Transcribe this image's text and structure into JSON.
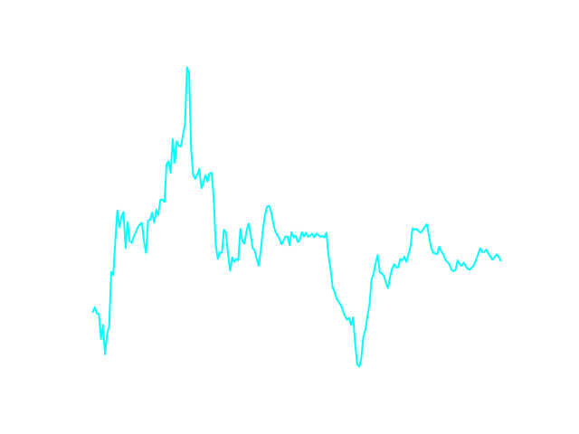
{
  "chart_data": {
    "type": "line",
    "grid": false,
    "axes_visible": false,
    "legend": "none",
    "series": [
      {
        "color": "#00ffff",
        "x": [
          0,
          1,
          2,
          3,
          4,
          5,
          6,
          7,
          8,
          9,
          10,
          11,
          12,
          13,
          14,
          15,
          16,
          17,
          18,
          19,
          20,
          21,
          22,
          23,
          24,
          25,
          26,
          27,
          28,
          29,
          30,
          31,
          32,
          33,
          34,
          35,
          36,
          37,
          38,
          39,
          40,
          41,
          42,
          43,
          44,
          45,
          46,
          47,
          48,
          49,
          50,
          51,
          52,
          53,
          54,
          55,
          56,
          57,
          58,
          59,
          60,
          61,
          62,
          63,
          64,
          65,
          66,
          67,
          68,
          69,
          70,
          71,
          72,
          73,
          74,
          75,
          76,
          77,
          78,
          79,
          80,
          81,
          82,
          83,
          84,
          85,
          86,
          87,
          88,
          89,
          90,
          91,
          92,
          93,
          94,
          95,
          96,
          97,
          98,
          99,
          100,
          101,
          102,
          103,
          104,
          105,
          106,
          107,
          108,
          109,
          110,
          111,
          112,
          113,
          114,
          115,
          116,
          117,
          118,
          119,
          120,
          121,
          122,
          123,
          124,
          125,
          126,
          127,
          128,
          129,
          130,
          131,
          132,
          133,
          134,
          135,
          136,
          137,
          138,
          139,
          140,
          141,
          142,
          143,
          144,
          145,
          146,
          147,
          148,
          149,
          150,
          151,
          152,
          153,
          154,
          155,
          156,
          157,
          158,
          159,
          160,
          161,
          162,
          163,
          164,
          165,
          166,
          167,
          168,
          169,
          170,
          171,
          172,
          173,
          174,
          175,
          176,
          177,
          178,
          179,
          180,
          181,
          182,
          183,
          184,
          185,
          186,
          187,
          188,
          189,
          190,
          191,
          192,
          193,
          194,
          195,
          196,
          197,
          198,
          199
        ],
        "y": [
          -0.35,
          -0.29,
          -0.37,
          -0.37,
          -0.7,
          -0.52,
          -0.9,
          -0.63,
          -0.54,
          0.17,
          0.13,
          0.58,
          0.97,
          0.75,
          0.89,
          0.95,
          0.48,
          0.82,
          0.57,
          0.55,
          0.63,
          0.69,
          0.75,
          0.79,
          0.81,
          0.56,
          0.42,
          0.84,
          0.85,
          0.94,
          0.81,
          0.98,
          0.91,
          1.11,
          1.11,
          1.08,
          1.57,
          1.61,
          1.46,
          1.9,
          1.59,
          1.87,
          1.81,
          1.8,
          1.95,
          2.1,
          2.83,
          2.76,
          1.75,
          1.43,
          1.38,
          1.44,
          1.51,
          1.26,
          1.33,
          1.43,
          1.35,
          1.45,
          1.46,
          1.13,
          0.52,
          0.34,
          0.42,
          0.42,
          0.72,
          0.68,
          0.4,
          0.19,
          0.36,
          0.3,
          0.34,
          0.32,
          0.73,
          0.57,
          0.54,
          0.7,
          0.8,
          0.66,
          0.48,
          0.45,
          0.34,
          0.25,
          0.46,
          0.72,
          0.91,
          1.02,
          1.03,
          0.96,
          0.81,
          0.7,
          0.65,
          0.61,
          0.53,
          0.57,
          0.63,
          0.63,
          0.52,
          0.69,
          0.62,
          0.64,
          0.56,
          0.59,
          0.69,
          0.63,
          0.68,
          0.63,
          0.64,
          0.67,
          0.62,
          0.67,
          0.65,
          0.63,
          0.64,
          0.62,
          0.68,
          0.38,
          0.21,
          -0.03,
          -0.09,
          -0.18,
          -0.22,
          -0.26,
          -0.33,
          -0.4,
          -0.45,
          -0.43,
          -0.52,
          -0.42,
          -0.76,
          -1.03,
          -1.06,
          -0.95,
          -0.67,
          -0.58,
          -0.4,
          -0.25,
          0.07,
          0.15,
          0.29,
          0.39,
          0.17,
          0.15,
          0.12,
          0.03,
          -0.04,
          0.1,
          0.21,
          0.27,
          0.23,
          0.23,
          0.34,
          0.32,
          0.37,
          0.3,
          0.4,
          0.5,
          0.74,
          0.72,
          0.73,
          0.7,
          0.68,
          0.72,
          0.76,
          0.79,
          0.64,
          0.49,
          0.42,
          0.41,
          0.4,
          0.5,
          0.44,
          0.4,
          0.33,
          0.3,
          0.27,
          0.2,
          0.18,
          0.2,
          0.32,
          0.27,
          0.25,
          0.29,
          0.24,
          0.21,
          0.2,
          0.23,
          0.26,
          0.33,
          0.4,
          0.48,
          0.43,
          0.43,
          0.46,
          0.41,
          0.37,
          0.33,
          0.36,
          0.4,
          0.37,
          0.32
        ]
      }
    ]
  }
}
